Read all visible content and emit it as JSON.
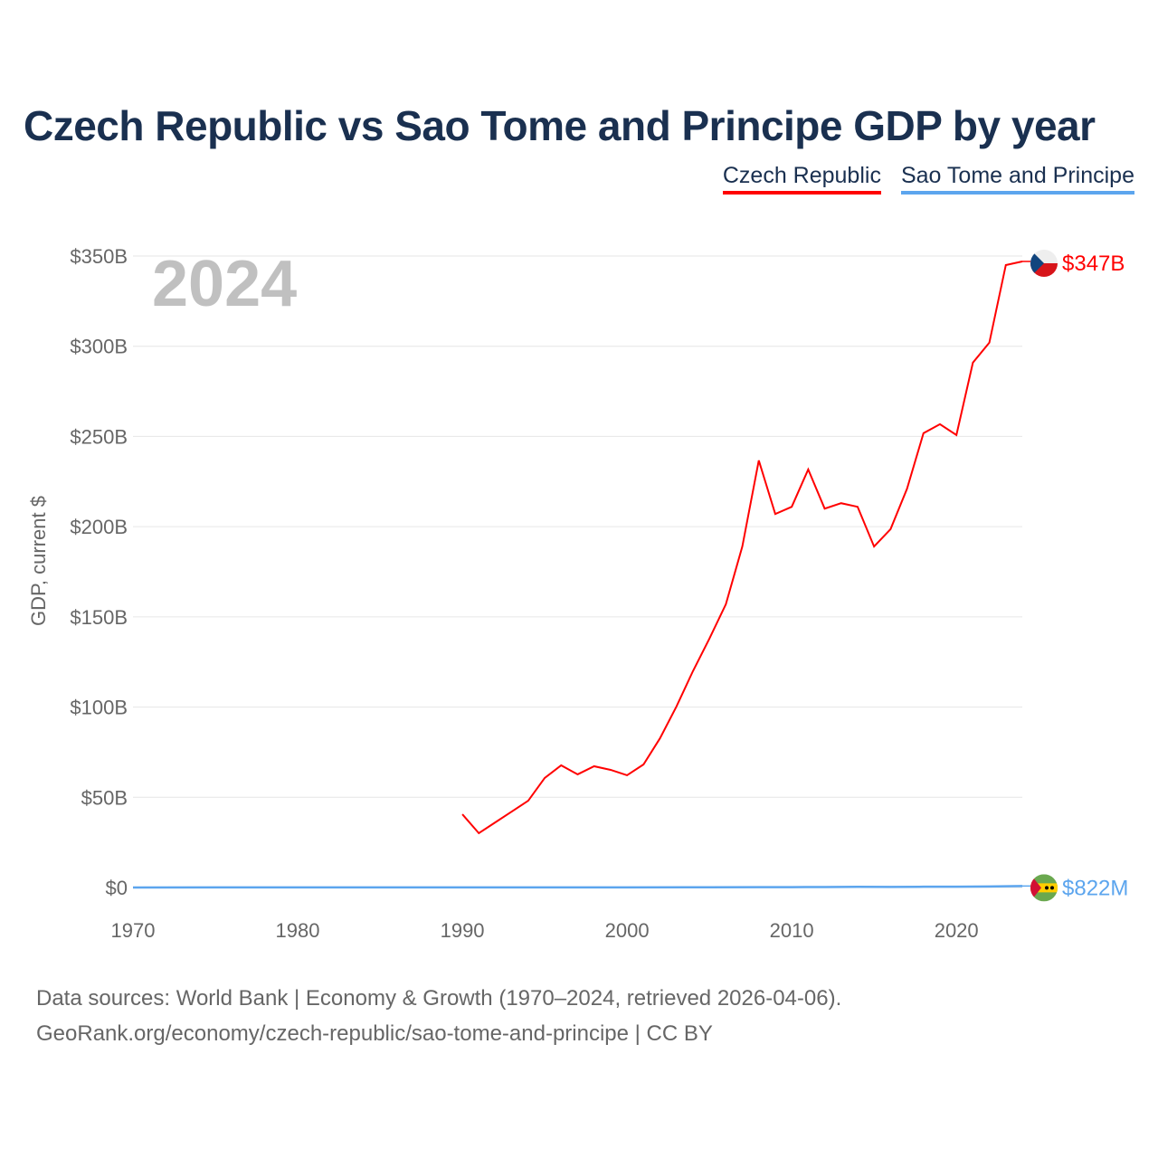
{
  "title": "Czech Republic vs Sao Tome and Principe GDP by year",
  "legend": [
    "Czech Republic",
    "Sao Tome and Principe"
  ],
  "year_label": "2024",
  "source_line1": "Data sources: World Bank | Economy & Growth (1970–2024, retrieved 2026-04-06).",
  "source_line2": "GeoRank.org/economy/czech-republic/sao-tome-and-principe | CC BY",
  "chart_data": {
    "type": "line",
    "title": "Czech Republic vs Sao Tome and Principe GDP by year",
    "xlabel": "",
    "ylabel": "GDP, current $",
    "xlim": [
      1970,
      2024
    ],
    "ylim": [
      0,
      350
    ],
    "x_ticks": [
      1970,
      1980,
      1990,
      2000,
      2010,
      2020
    ],
    "x_tick_labels": [
      "1970",
      "1980",
      "1990",
      "2000",
      "2010",
      "2020"
    ],
    "y_ticks": [
      0,
      50,
      100,
      150,
      200,
      250,
      300,
      350
    ],
    "y_tick_labels": [
      "$0",
      "$50B",
      "$100B",
      "$150B",
      "$200B",
      "$250B",
      "$300B",
      "$350B"
    ],
    "grid": true,
    "legend_position": "top-right",
    "series": [
      {
        "name": "Czech Republic",
        "color": "#ff0000",
        "end_label": "$347B",
        "x": [
          1990,
          1991,
          1992,
          1993,
          1994,
          1995,
          1996,
          1997,
          1998,
          1999,
          2000,
          2001,
          2002,
          2003,
          2004,
          2005,
          2006,
          2007,
          2008,
          2009,
          2010,
          2011,
          2012,
          2013,
          2014,
          2015,
          2016,
          2017,
          2018,
          2019,
          2020,
          2021,
          2022,
          2023,
          2024
        ],
        "values": [
          40.6,
          30.1,
          36.1,
          42.1,
          48.1,
          60.7,
          67.7,
          62.7,
          67.2,
          65.2,
          62.2,
          68.2,
          82.7,
          100.3,
          119.9,
          137.9,
          157.0,
          189.0,
          236.7,
          207.0,
          211.0,
          231.7,
          210.0,
          213.0,
          211.0,
          189.0,
          198.6,
          221.0,
          251.8,
          256.8,
          250.8,
          290.9,
          302.0,
          345.0,
          347.0
        ]
      },
      {
        "name": "Sao Tome and Principe",
        "color": "#5ca5ee",
        "end_label": "$822M",
        "x": [
          1970,
          1975,
          1980,
          1985,
          1990,
          1995,
          2000,
          2005,
          2008,
          2010,
          2012,
          2014,
          2016,
          2018,
          2020,
          2022,
          2023,
          2024
        ],
        "values": [
          0.02,
          0.04,
          0.05,
          0.06,
          0.07,
          0.08,
          0.09,
          0.13,
          0.19,
          0.2,
          0.26,
          0.35,
          0.34,
          0.41,
          0.47,
          0.55,
          0.68,
          0.822
        ]
      }
    ]
  }
}
